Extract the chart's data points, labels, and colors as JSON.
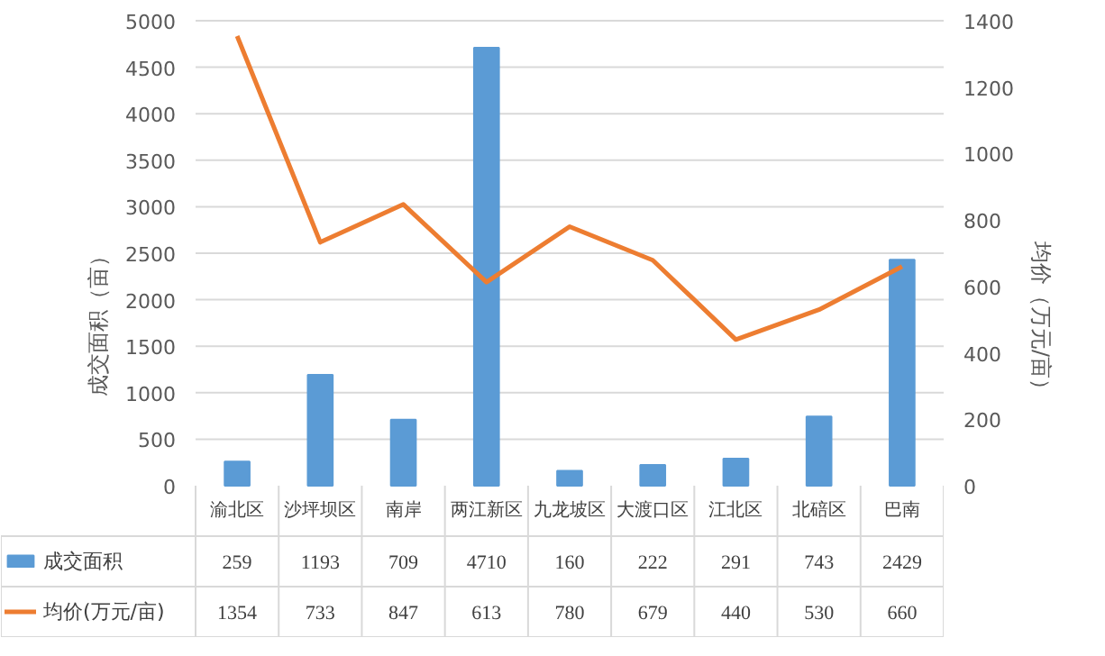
{
  "chart_data": {
    "type": "bar",
    "categories": [
      "渝北区",
      "沙坪坝区",
      "南岸",
      "两江新区",
      "九龙坡区",
      "大渡口区",
      "江北区",
      "北碚区",
      "巴南"
    ],
    "series": [
      {
        "name": "成交面积",
        "color": "#5b9bd5",
        "values": [
          259,
          1193,
          709,
          4710,
          160,
          222,
          291,
          743,
          2429
        ]
      },
      {
        "name": "均价(万元/亩)",
        "type": "line",
        "axis": "y2",
        "color": "#ed7d31",
        "values": [
          1354,
          733,
          847,
          613,
          780,
          679,
          440,
          530,
          660
        ]
      }
    ],
    "ylabel": "成交面积（亩）",
    "y2label": "均价（万元/亩）",
    "ylim": [
      0,
      5000
    ],
    "yticks": [
      0,
      500,
      1000,
      1500,
      2000,
      2500,
      3000,
      3500,
      4000,
      4500,
      5000
    ],
    "y2lim": [
      0,
      1400
    ],
    "y2ticks": [
      0,
      200,
      400,
      600,
      800,
      1000,
      1200,
      1400
    ],
    "grid": "y",
    "legend": "bottom",
    "data_labels": true
  }
}
